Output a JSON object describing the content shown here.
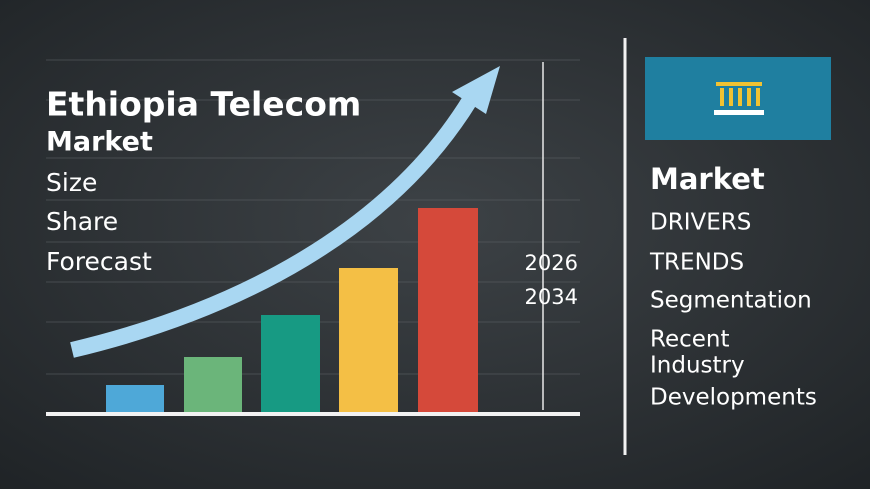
{
  "left": {
    "title": [
      "Ethiopia Telecom",
      "Market"
    ],
    "items": [
      "Size",
      "Share",
      "Forecast"
    ],
    "years": [
      "2026",
      "2034"
    ]
  },
  "right": {
    "heading": "Market",
    "items": [
      "DRIVERS",
      "TRENDS",
      "Segmentation",
      "Recent",
      "Industry",
      "Developments"
    ]
  }
}
